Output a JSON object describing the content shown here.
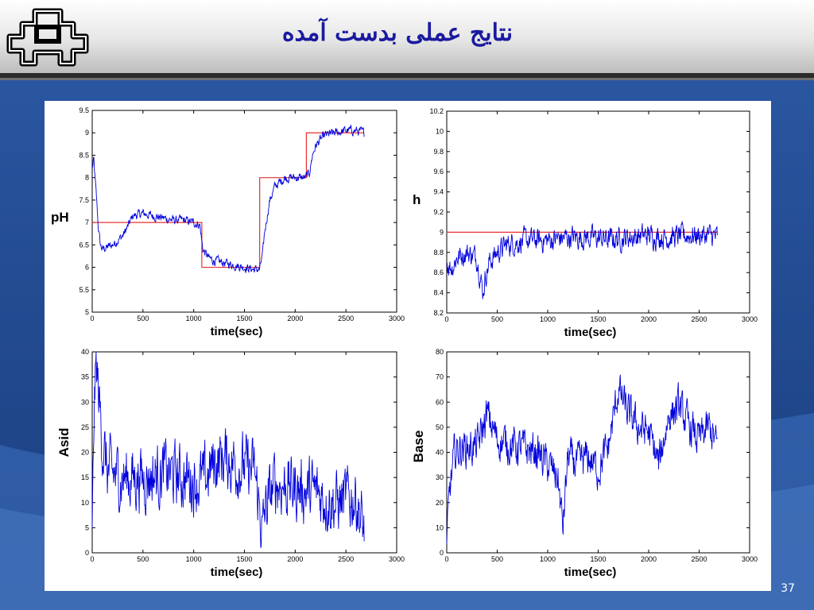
{
  "slide": {
    "title": "نتایج عملی بدست آمده",
    "page_number": "37"
  },
  "colors": {
    "trace": "#0000dd",
    "setpoint": "#e83030",
    "title": "#1a1aa0"
  },
  "chart_data": [
    {
      "type": "line",
      "xlabel": "time(sec)",
      "ylabel": "pH",
      "xlim": [
        0,
        3000
      ],
      "ylim": [
        5,
        9.5
      ],
      "xticks": [
        "0",
        "500",
        "1000",
        "1500",
        "2000",
        "2500",
        "3000"
      ],
      "yticks": [
        "5",
        "5.5",
        "6",
        "6.5",
        "7",
        "7.5",
        "8",
        "8.5",
        "9",
        "9.5"
      ],
      "series": [
        {
          "kind": "setpoint",
          "x": [
            0,
            1080,
            1080,
            1650,
            1650,
            2110,
            2110,
            2680
          ],
          "y": [
            7,
            7,
            6,
            6,
            8,
            8,
            9,
            9
          ]
        },
        {
          "kind": "measured",
          "x": [
            0,
            15,
            40,
            60,
            80,
            100,
            150,
            200,
            250,
            300,
            350,
            400,
            500,
            600,
            700,
            800,
            900,
            1000,
            1060,
            1090,
            1120,
            1150,
            1200,
            1300,
            1400,
            1500,
            1600,
            1650,
            1680,
            1700,
            1750,
            1800,
            1850,
            1900,
            2000,
            2100,
            2140,
            2170,
            2200,
            2250,
            2300,
            2400,
            2500,
            2600,
            2680
          ],
          "y": [
            8.2,
            8.4,
            7.6,
            6.9,
            6.5,
            6.4,
            6.45,
            6.5,
            6.6,
            6.7,
            6.9,
            7.15,
            7.2,
            7.15,
            7.1,
            7.05,
            7.05,
            7.0,
            6.95,
            6.4,
            6.3,
            6.2,
            6.15,
            6.1,
            6.05,
            6.0,
            5.95,
            5.95,
            6.3,
            6.8,
            7.5,
            7.8,
            7.9,
            8.0,
            8.0,
            8.0,
            8.1,
            8.5,
            8.7,
            8.85,
            8.95,
            9.0,
            9.05,
            9.05,
            9.0
          ],
          "noise": 0.08
        }
      ]
    },
    {
      "type": "line",
      "xlabel": "time(sec)",
      "ylabel": "h",
      "xlim": [
        0,
        3000
      ],
      "ylim": [
        8.2,
        10.2
      ],
      "xticks": [
        "0",
        "500",
        "1000",
        "1500",
        "2000",
        "2500",
        "3000"
      ],
      "yticks": [
        "8.2",
        "8.4",
        "8.6",
        "8.8",
        "9",
        "9.2",
        "9.4",
        "9.6",
        "9.8",
        "10",
        "10.2"
      ],
      "series": [
        {
          "kind": "setpoint",
          "x": [
            0,
            2680
          ],
          "y": [
            9,
            9
          ]
        },
        {
          "kind": "measured",
          "x": [
            0,
            50,
            100,
            200,
            300,
            360,
            380,
            420,
            500,
            600,
            700,
            800,
            1000,
            1200,
            1400,
            1600,
            1800,
            2000,
            2200,
            2400,
            2600,
            2680
          ],
          "y": [
            8.7,
            8.65,
            8.75,
            8.8,
            8.75,
            8.4,
            8.55,
            8.7,
            8.8,
            8.88,
            8.9,
            8.92,
            8.92,
            8.95,
            8.95,
            8.93,
            8.95,
            8.97,
            8.95,
            8.97,
            8.97,
            8.95
          ],
          "noise": 0.09
        }
      ]
    },
    {
      "type": "line",
      "xlabel": "time(sec)",
      "ylabel": "Asid",
      "xlim": [
        0,
        3000
      ],
      "ylim": [
        0,
        40
      ],
      "xticks": [
        "0",
        "500",
        "1000",
        "1500",
        "2000",
        "2500",
        "3000"
      ],
      "yticks": [
        "0",
        "5",
        "10",
        "15",
        "20",
        "25",
        "30",
        "35",
        "40"
      ],
      "series": [
        {
          "kind": "measured",
          "x": [
            0,
            20,
            40,
            70,
            100,
            150,
            300,
            500,
            700,
            900,
            1100,
            1200,
            1300,
            1400,
            1500,
            1600,
            1680,
            1700,
            1800,
            2000,
            2200,
            2400,
            2600,
            2680
          ],
          "y": [
            2,
            30,
            37,
            30,
            22,
            16,
            15,
            15,
            16,
            15,
            14,
            18,
            19,
            18,
            17,
            16,
            4,
            8,
            14,
            13,
            12,
            10,
            11,
            4
          ],
          "noise": 5
        }
      ]
    },
    {
      "type": "line",
      "xlabel": "time(sec)",
      "ylabel": "Base",
      "xlim": [
        0,
        3000
      ],
      "ylim": [
        0,
        80
      ],
      "xticks": [
        "0",
        "500",
        "1000",
        "1500",
        "2000",
        "2500",
        "3000"
      ],
      "yticks": [
        "0",
        "10",
        "20",
        "30",
        "40",
        "50",
        "60",
        "70",
        "80"
      ],
      "series": [
        {
          "kind": "measured",
          "x": [
            0,
            30,
            80,
            150,
            300,
            400,
            500,
            700,
            900,
            1100,
            1150,
            1200,
            1300,
            1400,
            1500,
            1600,
            1700,
            1800,
            1900,
            2000,
            2100,
            2200,
            2300,
            2400,
            2500,
            2600,
            2680
          ],
          "y": [
            3,
            25,
            40,
            42,
            42,
            55,
            45,
            42,
            40,
            30,
            10,
            38,
            35,
            38,
            33,
            42,
            65,
            55,
            50,
            48,
            35,
            55,
            58,
            50,
            45,
            50,
            42
          ],
          "noise": 6
        }
      ]
    }
  ]
}
